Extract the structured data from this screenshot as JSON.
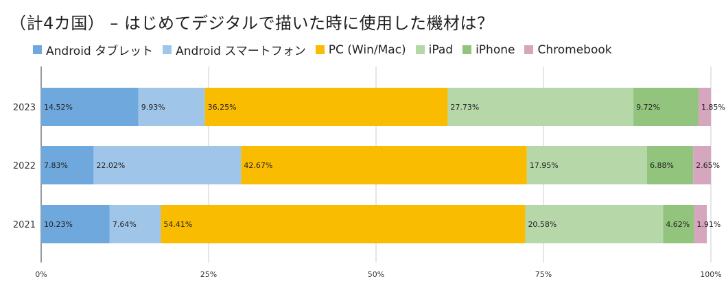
{
  "chart_data": {
    "type": "bar",
    "orientation": "horizontal",
    "stacked": "percent",
    "title": "（計4カ国） – はじめてデジタルで描いた時に使用した機材は？",
    "categories": [
      "2023",
      "2022",
      "2021"
    ],
    "series": [
      {
        "name": "Android タブレット",
        "color": "#6fa8dc",
        "values": [
          14.52,
          7.83,
          10.23
        ]
      },
      {
        "name": "Android スマートフォン",
        "color": "#9fc5e8",
        "values": [
          9.93,
          22.02,
          7.64
        ]
      },
      {
        "name": "PC (Win/Mac)",
        "color": "#f9bc00",
        "values": [
          36.25,
          42.67,
          54.41
        ]
      },
      {
        "name": "iPad",
        "color": "#b6d7a8",
        "values": [
          27.73,
          17.95,
          20.58
        ]
      },
      {
        "name": "iPhone",
        "color": "#93c47d",
        "values": [
          9.72,
          6.88,
          4.62
        ]
      },
      {
        "name": "Chromebook",
        "color": "#d5a6bd",
        "values": [
          1.85,
          2.65,
          1.91
        ]
      }
    ],
    "data_labels": [
      [
        "14.52%",
        "9.93%",
        "36.25%",
        "27.73%",
        "9.72%",
        "1.85%"
      ],
      [
        "7.83%",
        "22.02%",
        "42.67%",
        "17.95%",
        "6.88%",
        "2.65%"
      ],
      [
        "10.23%",
        "7.64%",
        "54.41%",
        "20.58%",
        "4.62%",
        "1.91%"
      ]
    ],
    "xtick_labels": [
      "0%",
      "25%",
      "50%",
      "75%",
      "100%"
    ],
    "xlim": [
      0,
      100
    ],
    "grid": true,
    "legend_position": "top"
  }
}
